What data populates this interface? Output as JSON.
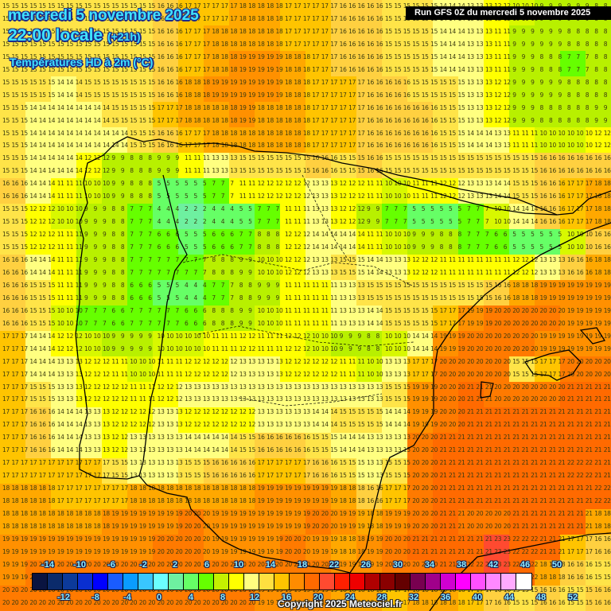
{
  "header": {
    "date_line": "mercredi 5 novembre 2025",
    "time_line": "22:00 locale",
    "lead_time": "(+21h)",
    "parameter": "Températures HD à 2m (°C)",
    "run_info": "Run GFS 0Z du mercredi 5 novembre 2025"
  },
  "footer": {
    "copyright": "Copyright 2025 Meteociel.fr"
  },
  "legend": {
    "colors": [
      "#0a1440",
      "#0b2b6b",
      "#0c3a9a",
      "#0a2fd0",
      "#0000ff",
      "#1a5cff",
      "#0a9cff",
      "#39c6ff",
      "#6bffff",
      "#6ef0a0",
      "#66ff66",
      "#66ff00",
      "#c4f000",
      "#ffff00",
      "#ffff80",
      "#ffe040",
      "#ffc400",
      "#ff8c00",
      "#ff6a00",
      "#ff4a30",
      "#ff2000",
      "#ee0000",
      "#b00000",
      "#8a0000",
      "#640000",
      "#780050",
      "#a0008a",
      "#d000d0",
      "#ff00ff",
      "#ff50ff",
      "#ff88ff",
      "#ffaaff",
      "#ffffff"
    ],
    "top_labels": [
      "-14",
      "-10",
      "-6",
      "-2",
      "2",
      "6",
      "10",
      "14",
      "18",
      "22",
      "26",
      "30",
      "34",
      "38",
      "42",
      "46",
      "50"
    ],
    "bottom_labels": [
      "-12",
      "-8",
      "-4",
      "0",
      "4",
      "8",
      "12",
      "16",
      "20",
      "24",
      "28",
      "32",
      "36",
      "40",
      "44",
      "48",
      "52"
    ]
  },
  "map": {
    "cols": 24,
    "rows": 24,
    "temps": [
      [
        15,
        15,
        15,
        15,
        15,
        15,
        16,
        17,
        17,
        18,
        18,
        17,
        17,
        16,
        16,
        15,
        15,
        14,
        13,
        12,
        10,
        9,
        9,
        8
      ],
      [
        15,
        15,
        15,
        15,
        15,
        15,
        16,
        17,
        18,
        18,
        18,
        17,
        17,
        16,
        16,
        15,
        15,
        14,
        13,
        11,
        9,
        9,
        8,
        8
      ],
      [
        15,
        15,
        15,
        15,
        15,
        15,
        16,
        17,
        18,
        19,
        19,
        18,
        17,
        16,
        16,
        15,
        15,
        14,
        13,
        11,
        9,
        8,
        7,
        8
      ],
      [
        15,
        15,
        14,
        15,
        15,
        15,
        16,
        18,
        19,
        19,
        19,
        18,
        17,
        17,
        16,
        16,
        15,
        15,
        13,
        12,
        9,
        9,
        8,
        8
      ],
      [
        15,
        14,
        14,
        14,
        15,
        15,
        17,
        18,
        18,
        19,
        18,
        18,
        17,
        17,
        16,
        16,
        16,
        15,
        13,
        12,
        9,
        8,
        8,
        9
      ],
      [
        15,
        14,
        14,
        14,
        14,
        15,
        16,
        17,
        18,
        18,
        18,
        18,
        17,
        17,
        16,
        16,
        16,
        15,
        14,
        13,
        11,
        10,
        10,
        12
      ],
      [
        15,
        14,
        14,
        12,
        9,
        8,
        9,
        11,
        13,
        15,
        15,
        15,
        16,
        15,
        16,
        15,
        15,
        15,
        15,
        15,
        15,
        16,
        16,
        16
      ],
      [
        16,
        14,
        11,
        10,
        9,
        8,
        5,
        5,
        7,
        11,
        12,
        12,
        13,
        12,
        11,
        10,
        11,
        12,
        13,
        14,
        15,
        16,
        17,
        18
      ],
      [
        15,
        12,
        10,
        9,
        8,
        7,
        4,
        2,
        4,
        5,
        7,
        11,
        13,
        12,
        9,
        7,
        5,
        5,
        7,
        10,
        14,
        16,
        17,
        18
      ],
      [
        15,
        12,
        11,
        9,
        8,
        7,
        6,
        5,
        6,
        7,
        8,
        12,
        14,
        14,
        11,
        10,
        9,
        8,
        7,
        6,
        5,
        5,
        10,
        16
      ],
      [
        16,
        14,
        11,
        9,
        8,
        7,
        7,
        7,
        8,
        9,
        10,
        12,
        13,
        15,
        14,
        13,
        12,
        11,
        11,
        11,
        12,
        13,
        16,
        18
      ],
      [
        16,
        15,
        11,
        9,
        8,
        6,
        5,
        4,
        7,
        8,
        9,
        11,
        11,
        13,
        15,
        15,
        15,
        15,
        15,
        16,
        18,
        19,
        19,
        19
      ],
      [
        16,
        15,
        10,
        7,
        6,
        7,
        7,
        6,
        8,
        9,
        10,
        11,
        11,
        13,
        14,
        15,
        15,
        17,
        19,
        20,
        20,
        20,
        19,
        19
      ],
      [
        17,
        14,
        12,
        10,
        9,
        9,
        10,
        10,
        11,
        12,
        11,
        12,
        10,
        9,
        8,
        10,
        14,
        19,
        20,
        20,
        20,
        19,
        19,
        19
      ],
      [
        17,
        14,
        13,
        12,
        11,
        10,
        11,
        12,
        12,
        13,
        13,
        12,
        12,
        11,
        10,
        13,
        17,
        20,
        20,
        20,
        15,
        17,
        20,
        20
      ],
      [
        17,
        15,
        13,
        12,
        12,
        11,
        12,
        13,
        13,
        13,
        13,
        13,
        13,
        13,
        13,
        15,
        19,
        20,
        21,
        20,
        20,
        20,
        21,
        21
      ],
      [
        17,
        16,
        14,
        13,
        12,
        12,
        13,
        12,
        12,
        12,
        13,
        13,
        14,
        15,
        15,
        14,
        19,
        20,
        21,
        21,
        21,
        21,
        21,
        21
      ],
      [
        17,
        16,
        14,
        13,
        12,
        13,
        13,
        14,
        14,
        15,
        16,
        16,
        15,
        14,
        13,
        13,
        20,
        21,
        21,
        21,
        21,
        21,
        21,
        21
      ],
      [
        17,
        17,
        17,
        17,
        15,
        13,
        13,
        15,
        16,
        16,
        17,
        17,
        16,
        15,
        13,
        15,
        20,
        21,
        21,
        21,
        21,
        21,
        22,
        21
      ],
      [
        18,
        18,
        17,
        17,
        17,
        18,
        18,
        18,
        18,
        18,
        19,
        19,
        19,
        18,
        16,
        17,
        20,
        21,
        21,
        21,
        21,
        21,
        21,
        22
      ],
      [
        18,
        18,
        18,
        18,
        19,
        19,
        19,
        20,
        19,
        19,
        19,
        19,
        20,
        19,
        18,
        19,
        20,
        21,
        20,
        20,
        21,
        21,
        21,
        18
      ],
      [
        19,
        19,
        19,
        19,
        19,
        19,
        20,
        20,
        19,
        19,
        19,
        20,
        19,
        18,
        19,
        20,
        21,
        21,
        21,
        23,
        22,
        21,
        17,
        16
      ],
      [
        19,
        20,
        20,
        20,
        20,
        20,
        20,
        20,
        20,
        20,
        20,
        20,
        20,
        19,
        19,
        20,
        20,
        21,
        22,
        23,
        22,
        18,
        16,
        15
      ],
      [
        20,
        20,
        20,
        20,
        20,
        20,
        20,
        20,
        20,
        20,
        19,
        19,
        19,
        18,
        18,
        17,
        18,
        18,
        17,
        16,
        15,
        16,
        15,
        16
      ]
    ]
  }
}
